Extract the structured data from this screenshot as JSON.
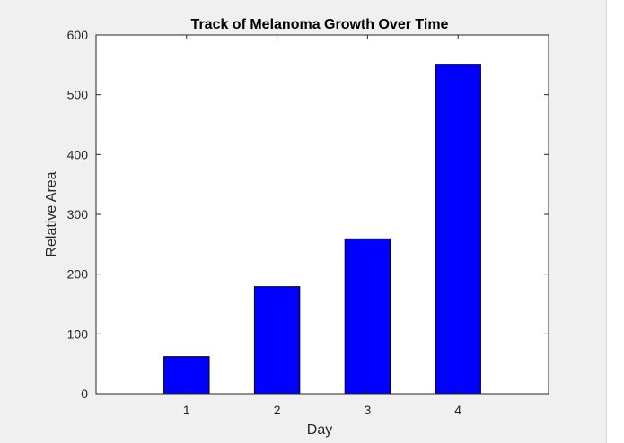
{
  "chart_data": {
    "type": "bar",
    "title": "Track of Melanoma Growth Over Time",
    "xlabel": "Day",
    "ylabel": "Relative Area",
    "categories": [
      "1",
      "2",
      "3",
      "4"
    ],
    "values": [
      62,
      179,
      259,
      551
    ],
    "ylim": [
      0,
      600
    ],
    "xlim": [
      0,
      5
    ],
    "yticks": [
      0,
      100,
      200,
      300,
      400,
      500,
      600
    ],
    "ytick_labels": [
      "0",
      "100",
      "200",
      "300",
      "400",
      "500",
      "600"
    ],
    "bar_color": "#0000ff",
    "grid": false,
    "legend": "none"
  }
}
